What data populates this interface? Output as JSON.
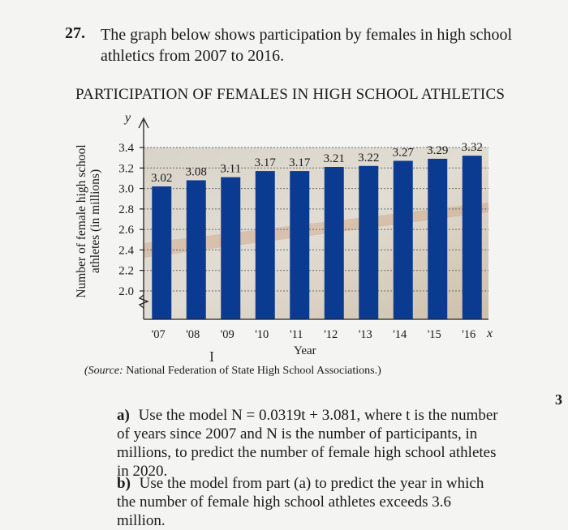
{
  "question": {
    "number": "27.",
    "text": "The graph below shows participation by females in high school athletics from 2007 to 2016."
  },
  "chart_data": {
    "type": "bar",
    "title": "PARTICIPATION OF FEMALES IN HIGH SCHOOL ATHLETICS",
    "categories": [
      "'07",
      "'08",
      "'09",
      "'10",
      "'11",
      "'12",
      "'13",
      "'14",
      "'15",
      "'16"
    ],
    "values": [
      3.02,
      3.08,
      3.11,
      3.17,
      3.17,
      3.21,
      3.22,
      3.27,
      3.29,
      3.32
    ],
    "value_labels": [
      "3.02",
      "3.08",
      "3.11",
      "3.17",
      "3.17",
      "3.21",
      "3.22",
      "3.27",
      "3.29",
      "3.32"
    ],
    "xlabel": "Year",
    "ylabel": "Number of female high school athletes (in millions)",
    "y_ticks": [
      "2.0",
      "2.2",
      "2.4",
      "2.6",
      "2.8",
      "3.0",
      "3.2",
      "3.4"
    ],
    "ylim": [
      2.0,
      3.4
    ],
    "y_axis_break": true,
    "axis_letters": {
      "y": "y",
      "x": "x"
    },
    "bar_color": "#0b3a91",
    "grid": true
  },
  "source_note": {
    "prefix": "(Source:",
    "text": "National Federation of State High School Associations.)"
  },
  "parts": {
    "a_label": "a)",
    "a_text": "Use the model N = 0.0319t + 3.081, where t is the number of years since 2007 and N is the number of participants, in millions, to predict the number of female high school athletes in 2020.",
    "b_label": "b)",
    "b_text": "Use the model from part (a) to predict the year in which the number of female high school athletes exceeds 3.6 million."
  },
  "side_number": "3",
  "cursor_glyph": "I"
}
